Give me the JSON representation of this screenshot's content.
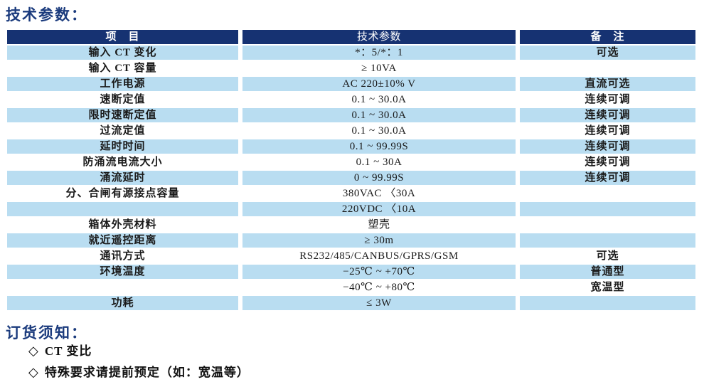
{
  "page": {
    "title": "技术参数：",
    "order_title": "订货须知："
  },
  "colors": {
    "header_bg": "#163272",
    "row_blue": "#b9ddf1",
    "title_blue": "#1b3b7d"
  },
  "table": {
    "headers": [
      "项　目",
      "技术参数",
      "备　注"
    ],
    "rows": [
      {
        "item": "输入 CT 变化",
        "value": "*：5/*：1",
        "note": "可选"
      },
      {
        "item": "输入 CT 容量",
        "value": "≥ 10VA",
        "note": ""
      },
      {
        "item": "工作电源",
        "value": "AC 220±10% V",
        "note": "直流可选"
      },
      {
        "item": "速断定值",
        "value": "0.1 ~ 30.0A",
        "note": "连续可调"
      },
      {
        "item": "限时速断定值",
        "value": "0.1 ~ 30.0A",
        "note": "连续可调"
      },
      {
        "item": "过流定值",
        "value": "0.1 ~ 30.0A",
        "note": "连续可调"
      },
      {
        "item": "延时时间",
        "value": "0.1 ~ 99.99S",
        "note": "连续可调"
      },
      {
        "item": "防涌流电流大小",
        "value": "0.1 ~ 30A",
        "note": "连续可调"
      },
      {
        "item": "涌流延时",
        "value": "0 ~ 99.99S",
        "note": "连续可调"
      },
      {
        "item": "分、合闸有源接点容量",
        "value": "380VAC 〈30A",
        "note": ""
      },
      {
        "item": "",
        "value": "220VDC 〈10A",
        "note": ""
      },
      {
        "item": "箱体外壳材料",
        "value": "塑壳",
        "note": ""
      },
      {
        "item": "就近遥控距离",
        "value": "≥ 30m",
        "note": ""
      },
      {
        "item": "通讯方式",
        "value": "RS232/485/CANBUS/GPRS/GSM",
        "note": "可选"
      },
      {
        "item": "环境温度",
        "value": "−25℃ ~ +70℃",
        "note": "普通型"
      },
      {
        "item": "",
        "value": "−40℃ ~ +80℃",
        "note": "宽温型"
      },
      {
        "item": "功耗",
        "value": "≤ 3W",
        "note": ""
      }
    ]
  },
  "order": {
    "bullet": "◇",
    "items": [
      {
        "text": "CT 变比"
      },
      {
        "text": "特殊要求请提前预定（如：宽温等）"
      }
    ]
  }
}
